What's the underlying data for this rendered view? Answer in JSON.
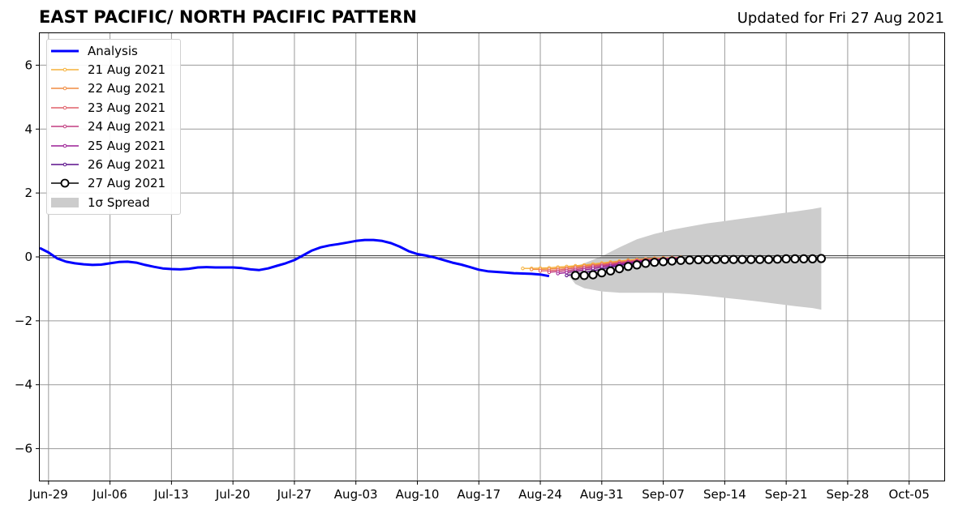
{
  "header": {
    "title": "EAST PACIFIC/ NORTH PACIFIC PATTERN",
    "updated": "Updated for Fri 27 Aug 2021"
  },
  "legend": {
    "items": [
      {
        "label": "Analysis",
        "kind": "analysis",
        "color": "#0000ff"
      },
      {
        "label": "21 Aug 2021",
        "kind": "forecast",
        "color": "#f6b13a"
      },
      {
        "label": "22 Aug 2021",
        "kind": "forecast",
        "color": "#f08c40"
      },
      {
        "label": "23 Aug 2021",
        "kind": "forecast",
        "color": "#e0606a"
      },
      {
        "label": "24 Aug 2021",
        "kind": "forecast",
        "color": "#c23d80"
      },
      {
        "label": "25 Aug 2021",
        "kind": "forecast",
        "color": "#9c1f96"
      },
      {
        "label": "26 Aug 2021",
        "kind": "forecast",
        "color": "#5a0f8a"
      },
      {
        "label": "27 Aug 2021",
        "kind": "current",
        "color": "#000000"
      },
      {
        "label": "1σ Spread",
        "kind": "spread",
        "color": "#cccccc"
      }
    ]
  },
  "chart_data": {
    "type": "line",
    "title": "EAST PACIFIC/ NORTH PACIFIC PATTERN",
    "xlabel": "",
    "ylabel": "",
    "x_range": [
      "2021-06-28",
      "2021-10-09"
    ],
    "ylim": [
      -7,
      7
    ],
    "y_ticks": [
      6,
      4,
      2,
      0,
      -2,
      -4,
      -6
    ],
    "y_tick_labels": [
      "6",
      "4",
      "2",
      "0",
      "−2",
      "−4",
      "−6"
    ],
    "x_ticks": [
      "2021-06-29",
      "2021-07-06",
      "2021-07-13",
      "2021-07-20",
      "2021-07-27",
      "2021-08-03",
      "2021-08-10",
      "2021-08-17",
      "2021-08-24",
      "2021-08-31",
      "2021-09-07",
      "2021-09-14",
      "2021-09-21",
      "2021-09-28",
      "2021-10-05"
    ],
    "x_tick_labels": [
      "Jun-29",
      "Jul-06",
      "Jul-13",
      "Jul-20",
      "Jul-27",
      "Aug-03",
      "Aug-10",
      "Aug-17",
      "Aug-24",
      "Aug-31",
      "Sep-07",
      "Sep-14",
      "Sep-21",
      "Sep-28",
      "Oct-05"
    ],
    "grid": true,
    "legend_position": "top-left",
    "series": [
      {
        "name": "Analysis",
        "color": "#0000ff",
        "points": [
          [
            "2021-06-28",
            0.28
          ],
          [
            "2021-06-29",
            0.14
          ],
          [
            "2021-06-30",
            -0.05
          ],
          [
            "2021-07-01",
            -0.15
          ],
          [
            "2021-07-02",
            -0.2
          ],
          [
            "2021-07-03",
            -0.23
          ],
          [
            "2021-07-04",
            -0.25
          ],
          [
            "2021-07-05",
            -0.24
          ],
          [
            "2021-07-06",
            -0.2
          ],
          [
            "2021-07-07",
            -0.16
          ],
          [
            "2021-07-08",
            -0.15
          ],
          [
            "2021-07-09",
            -0.18
          ],
          [
            "2021-07-10",
            -0.25
          ],
          [
            "2021-07-11",
            -0.31
          ],
          [
            "2021-07-12",
            -0.36
          ],
          [
            "2021-07-13",
            -0.38
          ],
          [
            "2021-07-14",
            -0.39
          ],
          [
            "2021-07-15",
            -0.37
          ],
          [
            "2021-07-16",
            -0.33
          ],
          [
            "2021-07-17",
            -0.32
          ],
          [
            "2021-07-18",
            -0.33
          ],
          [
            "2021-07-19",
            -0.33
          ],
          [
            "2021-07-20",
            -0.33
          ],
          [
            "2021-07-21",
            -0.35
          ],
          [
            "2021-07-22",
            -0.39
          ],
          [
            "2021-07-23",
            -0.41
          ],
          [
            "2021-07-24",
            -0.36
          ],
          [
            "2021-07-25",
            -0.28
          ],
          [
            "2021-07-26",
            -0.2
          ],
          [
            "2021-07-27",
            -0.1
          ],
          [
            "2021-07-28",
            0.05
          ],
          [
            "2021-07-29",
            0.2
          ],
          [
            "2021-07-30",
            0.3
          ],
          [
            "2021-07-31",
            0.36
          ],
          [
            "2021-08-01",
            0.4
          ],
          [
            "2021-08-02",
            0.45
          ],
          [
            "2021-08-03",
            0.5
          ],
          [
            "2021-08-04",
            0.53
          ],
          [
            "2021-08-05",
            0.53
          ],
          [
            "2021-08-06",
            0.5
          ],
          [
            "2021-08-07",
            0.43
          ],
          [
            "2021-08-08",
            0.32
          ],
          [
            "2021-08-09",
            0.18
          ],
          [
            "2021-08-10",
            0.09
          ],
          [
            "2021-08-11",
            0.04
          ],
          [
            "2021-08-12",
            -0.02
          ],
          [
            "2021-08-13",
            -0.1
          ],
          [
            "2021-08-14",
            -0.18
          ],
          [
            "2021-08-15",
            -0.24
          ],
          [
            "2021-08-16",
            -0.32
          ],
          [
            "2021-08-17",
            -0.4
          ],
          [
            "2021-08-18",
            -0.45
          ],
          [
            "2021-08-19",
            -0.47
          ],
          [
            "2021-08-20",
            -0.49
          ],
          [
            "2021-08-21",
            -0.51
          ],
          [
            "2021-08-22",
            -0.52
          ],
          [
            "2021-08-23",
            -0.53
          ],
          [
            "2021-08-24",
            -0.55
          ],
          [
            "2021-08-25",
            -0.6
          ]
        ]
      },
      {
        "name": "21 Aug 2021",
        "color": "#f6b13a",
        "start": "2021-08-22",
        "values": [
          -0.36,
          -0.36,
          -0.35,
          -0.34,
          -0.32,
          -0.3,
          -0.28,
          -0.25,
          -0.22,
          -0.19,
          -0.16,
          -0.13,
          -0.1,
          -0.08,
          -0.06,
          -0.04,
          -0.03,
          -0.02,
          -0.01
        ]
      },
      {
        "name": "22 Aug 2021",
        "color": "#f08c40",
        "start": "2021-08-23",
        "values": [
          -0.39,
          -0.39,
          -0.38,
          -0.36,
          -0.34,
          -0.31,
          -0.28,
          -0.25,
          -0.22,
          -0.18,
          -0.15,
          -0.12,
          -0.1,
          -0.07,
          -0.05,
          -0.04,
          -0.03,
          -0.02
        ]
      },
      {
        "name": "23 Aug 2021",
        "color": "#e0606a",
        "start": "2021-08-24",
        "values": [
          -0.44,
          -0.43,
          -0.41,
          -0.38,
          -0.35,
          -0.32,
          -0.28,
          -0.24,
          -0.21,
          -0.17,
          -0.14,
          -0.11,
          -0.09,
          -0.07,
          -0.05,
          -0.03,
          -0.02
        ]
      },
      {
        "name": "24 Aug 2021",
        "color": "#c23d80",
        "start": "2021-08-25",
        "values": [
          -0.48,
          -0.46,
          -0.43,
          -0.4,
          -0.36,
          -0.32,
          -0.28,
          -0.24,
          -0.2,
          -0.16,
          -0.13,
          -0.1,
          -0.08,
          -0.06,
          -0.04,
          -0.03
        ]
      },
      {
        "name": "25 Aug 2021",
        "color": "#9c1f96",
        "start": "2021-08-26",
        "values": [
          -0.52,
          -0.49,
          -0.45,
          -0.41,
          -0.37,
          -0.32,
          -0.28,
          -0.23,
          -0.19,
          -0.15,
          -0.12,
          -0.09,
          -0.07,
          -0.05,
          -0.04
        ]
      },
      {
        "name": "26 Aug 2021",
        "color": "#5a0f8a",
        "start": "2021-08-27",
        "values": [
          -0.58,
          -0.54,
          -0.49,
          -0.44,
          -0.38,
          -0.32,
          -0.27,
          -0.22,
          -0.18,
          -0.14,
          -0.11,
          -0.08,
          -0.06,
          -0.05
        ]
      },
      {
        "name": "27 Aug 2021",
        "color": "#000000",
        "start": "2021-08-28",
        "values": [
          -0.58,
          -0.58,
          -0.56,
          -0.5,
          -0.44,
          -0.37,
          -0.3,
          -0.25,
          -0.2,
          -0.17,
          -0.15,
          -0.13,
          -0.11,
          -0.1,
          -0.09,
          -0.08,
          -0.08,
          -0.08,
          -0.08,
          -0.08,
          -0.08,
          -0.08,
          -0.08,
          -0.07,
          -0.06,
          -0.06,
          -0.06,
          -0.06,
          -0.05
        ]
      }
    ],
    "spread": {
      "name": "1σ Spread",
      "color": "#cccccc",
      "points": [
        [
          "2021-08-27",
          -0.5,
          -0.5
        ],
        [
          "2021-08-28",
          -0.85,
          -0.3
        ],
        [
          "2021-08-29",
          -0.98,
          -0.2
        ],
        [
          "2021-08-31",
          -1.08,
          0.02
        ],
        [
          "2021-09-02",
          -1.12,
          0.3
        ],
        [
          "2021-09-04",
          -1.12,
          0.55
        ],
        [
          "2021-09-06",
          -1.12,
          0.72
        ],
        [
          "2021-09-08",
          -1.13,
          0.85
        ],
        [
          "2021-09-10",
          -1.17,
          0.95
        ],
        [
          "2021-09-12",
          -1.22,
          1.05
        ],
        [
          "2021-09-14",
          -1.28,
          1.12
        ],
        [
          "2021-09-16",
          -1.34,
          1.2
        ],
        [
          "2021-09-18",
          -1.4,
          1.27
        ],
        [
          "2021-09-20",
          -1.47,
          1.35
        ],
        [
          "2021-09-22",
          -1.54,
          1.42
        ],
        [
          "2021-09-24",
          -1.6,
          1.5
        ],
        [
          "2021-09-25",
          -1.65,
          1.55
        ]
      ]
    }
  }
}
